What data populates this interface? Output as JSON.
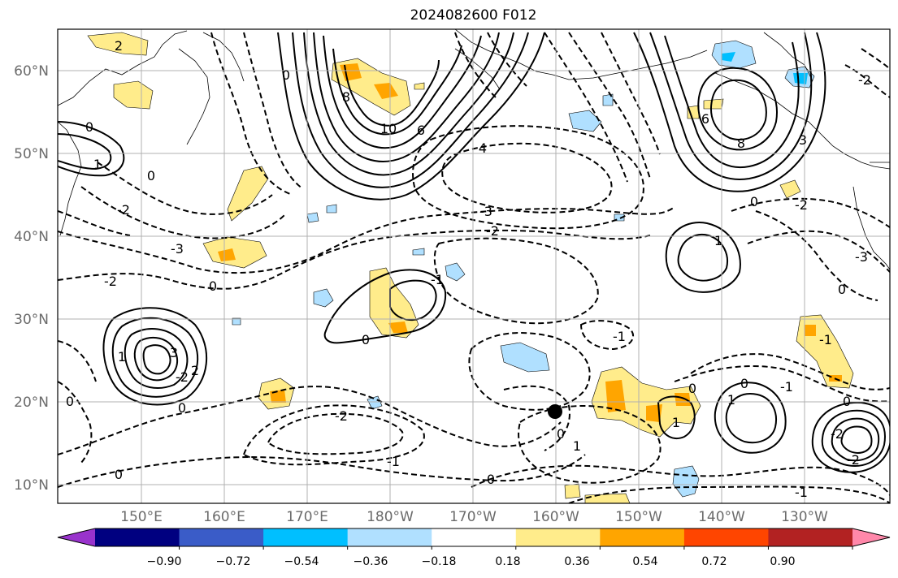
{
  "map": {
    "title": "2024082600 F012",
    "lat_labels": [
      "60°N",
      "50°N",
      "40°N",
      "30°N",
      "20°N",
      "10°N"
    ],
    "lon_labels": [
      "150°E",
      "160°E",
      "170°E",
      "180°W",
      "170°W",
      "160°W",
      "150°W",
      "140°W",
      "130°W"
    ]
  },
  "colorbar": {
    "colors": [
      "#9933cc",
      "#000080",
      "#3a5cc8",
      "#00bfff",
      "#b0e0ff",
      "#ffffff",
      "#ffec8b",
      "#ffa500",
      "#ff4500",
      "#b22222",
      "#ff88aa"
    ],
    "tick_labels": [
      "−0.90",
      "−0.72",
      "−0.54",
      "−0.36",
      "−0.18",
      "0.18",
      "0.36",
      "0.54",
      "0.72",
      "0.90"
    ]
  },
  "contour_labels": [
    "2",
    "0",
    "1",
    "-2",
    "-3",
    "8",
    "10",
    "6",
    "4",
    "-3",
    "-2",
    "-1",
    "6",
    "8",
    "3",
    "1",
    "0",
    "-2",
    "-3",
    "0",
    "-2",
    "0",
    "1",
    "0",
    "3",
    "2",
    "-2",
    "0",
    "-2",
    "-1",
    "0",
    "0",
    "0",
    "-1",
    "-1",
    "0",
    "1",
    "-2",
    "0",
    "0",
    "1",
    "0",
    "-2",
    "-1",
    "0",
    "-2",
    "1",
    "-1",
    "0"
  ],
  "marker": "station-dot"
}
